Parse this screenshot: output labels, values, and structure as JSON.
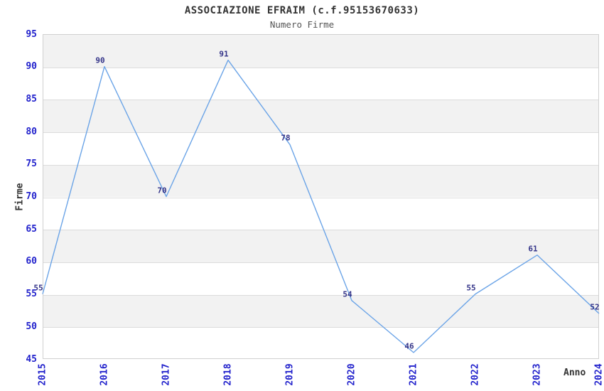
{
  "header": {
    "title": "ASSOCIAZIONE EFRAIM (c.f.95153670633)",
    "subtitle": "Numero Firme"
  },
  "chart_data": {
    "type": "line",
    "title": "ASSOCIAZIONE EFRAIM (c.f.95153670633)",
    "subtitle": "Numero Firme",
    "xlabel": "Anno",
    "ylabel": "Firme",
    "categories": [
      "2015",
      "2016",
      "2017",
      "2018",
      "2019",
      "2020",
      "2021",
      "2022",
      "2023",
      "2024"
    ],
    "values": [
      55,
      90,
      70,
      91,
      78,
      54,
      46,
      55,
      61,
      52
    ],
    "yticks": [
      95,
      90,
      85,
      80,
      75,
      70,
      65,
      60,
      55,
      50,
      45
    ],
    "ylim": [
      45,
      95
    ],
    "grid": "horizontal-bands-alternating",
    "legend": "none",
    "colors": {
      "line": "#6ba4e7",
      "tick_label": "#2222cc",
      "data_label": "#333388",
      "band_fill": "#f2f2f2",
      "grid_line": "#dcdcdc",
      "plot_border": "#d0d0d0",
      "title": "#333333",
      "subtitle": "#555555",
      "axis_title": "#333333",
      "background": "#ffffff"
    }
  }
}
